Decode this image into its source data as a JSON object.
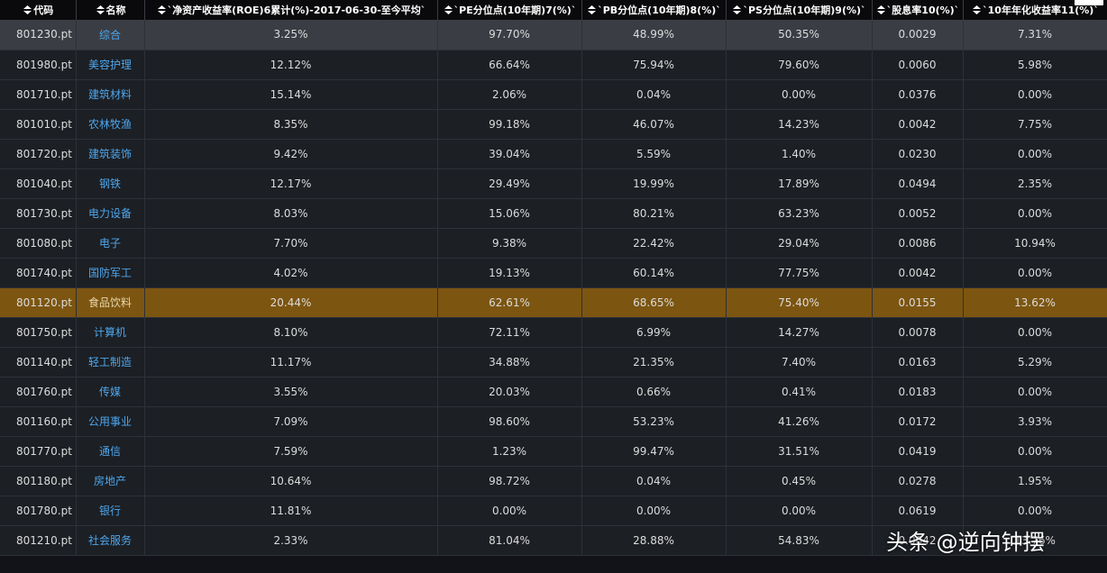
{
  "headers": [
    "代码",
    "名称",
    "`净资产收益率(ROE)6累计(%)-2017-06-30-至今平均`",
    "`PE分位点(10年期)7(%)`",
    "`PB分位点(10年期)8(%)`",
    "`PS分位点(10年期)9(%)`",
    "`股息率10(%)`",
    "`10年年化收益率11(%)`"
  ],
  "rows": [
    [
      "801230.pt",
      "综合",
      "3.25%",
      "97.70%",
      "48.99%",
      "50.35%",
      "0.0029",
      "7.31%"
    ],
    [
      "801980.pt",
      "美容护理",
      "12.12%",
      "66.64%",
      "75.94%",
      "79.60%",
      "0.0060",
      "5.98%"
    ],
    [
      "801710.pt",
      "建筑材料",
      "15.14%",
      "2.06%",
      "0.04%",
      "0.00%",
      "0.0376",
      "0.00%"
    ],
    [
      "801010.pt",
      "农林牧渔",
      "8.35%",
      "99.18%",
      "46.07%",
      "14.23%",
      "0.0042",
      "7.75%"
    ],
    [
      "801720.pt",
      "建筑装饰",
      "9.42%",
      "39.04%",
      "5.59%",
      "1.40%",
      "0.0230",
      "0.00%"
    ],
    [
      "801040.pt",
      "钢铁",
      "12.17%",
      "29.49%",
      "19.99%",
      "17.89%",
      "0.0494",
      "2.35%"
    ],
    [
      "801730.pt",
      "电力设备",
      "8.03%",
      "15.06%",
      "80.21%",
      "63.23%",
      "0.0052",
      "0.00%"
    ],
    [
      "801080.pt",
      "电子",
      "7.70%",
      "9.38%",
      "22.42%",
      "29.04%",
      "0.0086",
      "10.94%"
    ],
    [
      "801740.pt",
      "国防军工",
      "4.02%",
      "19.13%",
      "60.14%",
      "77.75%",
      "0.0042",
      "0.00%"
    ],
    [
      "801120.pt",
      "食品饮料",
      "20.44%",
      "62.61%",
      "68.65%",
      "75.40%",
      "0.0155",
      "13.62%"
    ],
    [
      "801750.pt",
      "计算机",
      "8.10%",
      "72.11%",
      "6.99%",
      "14.27%",
      "0.0078",
      "0.00%"
    ],
    [
      "801140.pt",
      "轻工制造",
      "11.17%",
      "34.88%",
      "21.35%",
      "7.40%",
      "0.0163",
      "5.29%"
    ],
    [
      "801760.pt",
      "传媒",
      "3.55%",
      "20.03%",
      "0.66%",
      "0.41%",
      "0.0183",
      "0.00%"
    ],
    [
      "801160.pt",
      "公用事业",
      "7.09%",
      "98.60%",
      "53.23%",
      "41.26%",
      "0.0172",
      "3.93%"
    ],
    [
      "801770.pt",
      "通信",
      "7.59%",
      "1.23%",
      "99.47%",
      "31.51%",
      "0.0419",
      "0.00%"
    ],
    [
      "801180.pt",
      "房地产",
      "10.64%",
      "98.72%",
      "0.04%",
      "0.45%",
      "0.0278",
      "1.95%"
    ],
    [
      "801780.pt",
      "银行",
      "11.81%",
      "0.00%",
      "0.00%",
      "0.00%",
      "0.0619",
      "0.00%"
    ],
    [
      "801210.pt",
      "社会服务",
      "2.33%",
      "81.04%",
      "28.88%",
      "54.83%",
      "0.0042",
      "13.76%"
    ]
  ],
  "hover_row": 0,
  "selected_row": 9,
  "watermark": "头条 @逆向钟摆",
  "colors": {
    "background": "#1c1f24",
    "header_bg": "#0a0a0c",
    "name_link": "#4ea6ec",
    "selected_row": "#7c5510",
    "hover_row": "#3a3d44"
  },
  "icons": {
    "sort": "sort-arrows-icon"
  }
}
